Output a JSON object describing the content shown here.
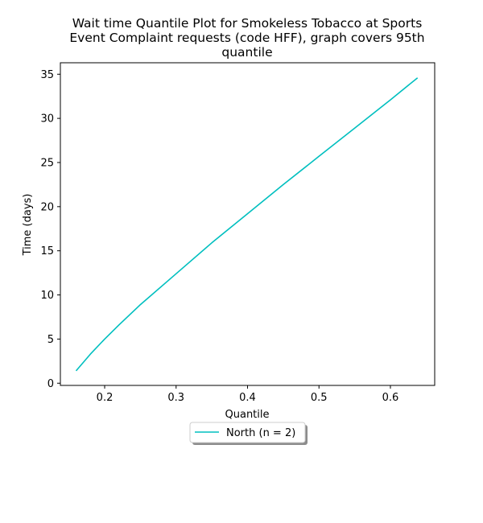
{
  "chart_data": {
    "type": "line",
    "title_lines": [
      "Wait time Quantile Plot for Smokeless Tobacco at Sports",
      "Event Complaint  requests (code HFF), graph covers 95th",
      "quantile"
    ],
    "xlabel": "Quantile",
    "ylabel": "Time (days)",
    "xlim": [
      0.138,
      0.662
    ],
    "ylim": [
      -0.25,
      36.3
    ],
    "xticks": [
      0.2,
      0.3,
      0.4,
      0.5,
      0.6
    ],
    "xtick_labels": [
      "0.2",
      "0.3",
      "0.4",
      "0.5",
      "0.6"
    ],
    "yticks": [
      0,
      5,
      10,
      15,
      20,
      25,
      30,
      35
    ],
    "ytick_labels": [
      "0",
      "5",
      "10",
      "15",
      "20",
      "25",
      "30",
      "35"
    ],
    "legend": {
      "placement": "below-center",
      "entries": [
        "North (n = 2)"
      ]
    },
    "series": [
      {
        "name": "North (n = 2)",
        "color": "#00bfbf",
        "x": [
          0.16,
          0.18,
          0.2,
          0.22,
          0.25,
          0.3,
          0.35,
          0.4,
          0.45,
          0.5,
          0.55,
          0.6,
          0.638
        ],
        "y": [
          1.4,
          3.3,
          5.0,
          6.6,
          8.9,
          12.4,
          15.9,
          19.2,
          22.5,
          25.7,
          28.9,
          32.1,
          34.6
        ]
      }
    ]
  }
}
